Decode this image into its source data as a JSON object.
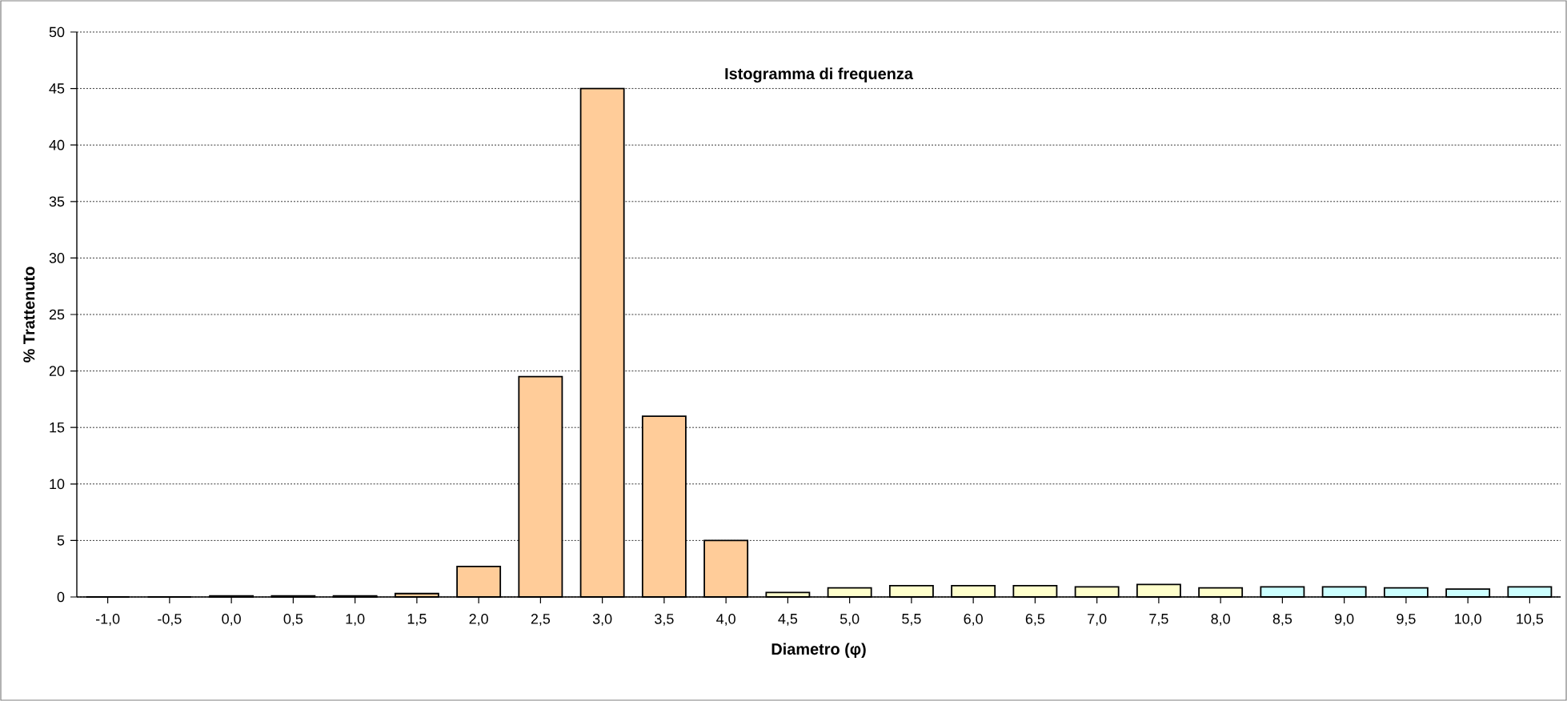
{
  "chart_data": {
    "type": "bar",
    "title": "Istogramma di frequenza",
    "xlabel": "Diametro (φ)",
    "ylabel": "% Trattenuto",
    "categories": [
      "-1,0",
      "-0,5",
      "0,0",
      "0,5",
      "1,0",
      "1,5",
      "2,0",
      "2,5",
      "3,0",
      "3,5",
      "4,0",
      "4,5",
      "5,0",
      "5,5",
      "6,0",
      "6,5",
      "7,0",
      "7,5",
      "8,0",
      "8,5",
      "9,0",
      "9,5",
      "10,0",
      "10,5"
    ],
    "values": [
      0,
      0,
      0.1,
      0.1,
      0.1,
      0.3,
      2.7,
      19.5,
      45,
      16,
      5,
      0.4,
      0.8,
      1.0,
      1.0,
      1.0,
      0.9,
      1.1,
      0.8,
      0.9,
      0.9,
      0.8,
      0.7,
      0.9
    ],
    "colors": [
      "#ffcc99",
      "#ffcc99",
      "#ffcc99",
      "#ffcc99",
      "#ffcc99",
      "#ffcc99",
      "#ffcc99",
      "#ffcc99",
      "#ffcc99",
      "#ffcc99",
      "#ffcc99",
      "#ffffcc",
      "#ffffcc",
      "#ffffcc",
      "#ffffcc",
      "#ffffcc",
      "#ffffcc",
      "#ffffcc",
      "#ffffcc",
      "#ccffff",
      "#ccffff",
      "#ccffff",
      "#ccffff",
      "#ccffff"
    ],
    "ylim": [
      0,
      50
    ],
    "yticks": [
      0,
      5,
      10,
      15,
      20,
      25,
      30,
      35,
      40,
      45,
      50
    ],
    "grid": "y"
  }
}
